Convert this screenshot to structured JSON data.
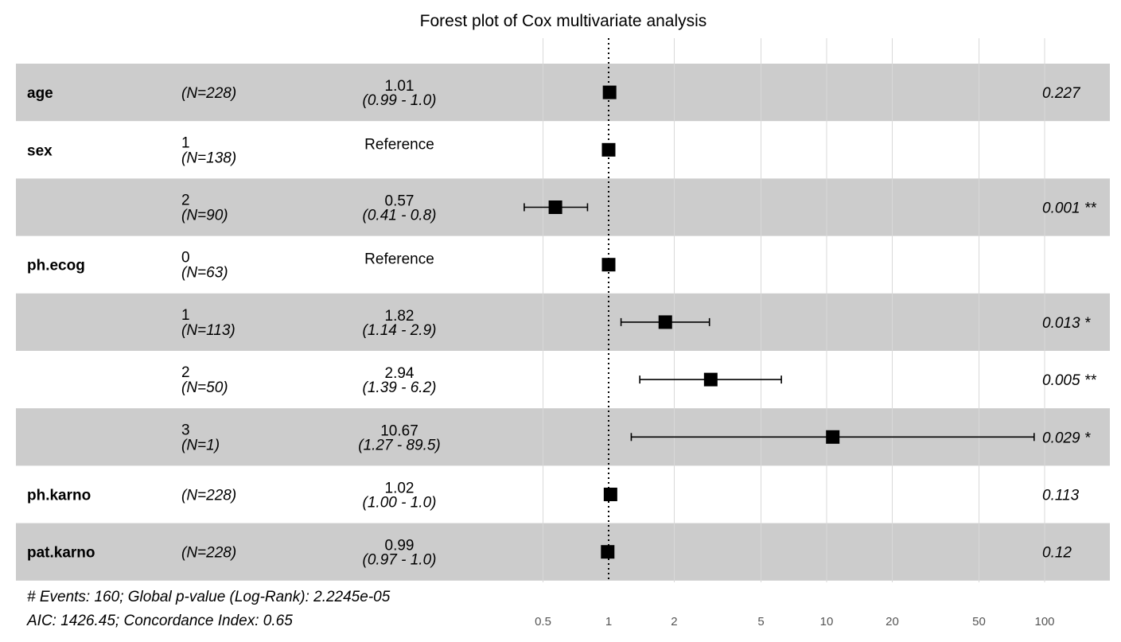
{
  "chart_data": {
    "type": "forest",
    "title": "Forest plot of Cox multivariate analysis",
    "x_scale": "log",
    "xlim": [
      0.4,
      150
    ],
    "reference_line": 1,
    "x_ticks": [
      0.5,
      1,
      2,
      5,
      10,
      20,
      50,
      100
    ],
    "x_tick_labels": [
      "0.5",
      "1",
      "2",
      "5",
      "10",
      "20",
      "50",
      "100"
    ],
    "rows": [
      {
        "variable": "age",
        "level": "",
        "n": "(N=228)",
        "hr_text": "1.01",
        "ci_text": "(0.99 -  1.0)",
        "hr": 1.01,
        "ci_low": 0.99,
        "ci_high": 1.0,
        "p": "0.227",
        "shade": true
      },
      {
        "variable": "sex",
        "level": "1",
        "n": "(N=138)",
        "hr_text": "Reference",
        "ci_text": "",
        "hr": 1.0,
        "ci_low": null,
        "ci_high": null,
        "p": "",
        "shade": false
      },
      {
        "variable": "",
        "level": "2",
        "n": "(N=90)",
        "hr_text": "0.57",
        "ci_text": "(0.41 -  0.8)",
        "hr": 0.57,
        "ci_low": 0.41,
        "ci_high": 0.8,
        "p": "0.001 **",
        "shade": true
      },
      {
        "variable": "ph.ecog",
        "level": "0",
        "n": "(N=63)",
        "hr_text": "Reference",
        "ci_text": "",
        "hr": 1.0,
        "ci_low": null,
        "ci_high": null,
        "p": "",
        "shade": false
      },
      {
        "variable": "",
        "level": "1",
        "n": "(N=113)",
        "hr_text": "1.82",
        "ci_text": "(1.14 -  2.9)",
        "hr": 1.82,
        "ci_low": 1.14,
        "ci_high": 2.9,
        "p": "0.013 *",
        "shade": true
      },
      {
        "variable": "",
        "level": "2",
        "n": "(N=50)",
        "hr_text": "2.94",
        "ci_text": "(1.39 -  6.2)",
        "hr": 2.94,
        "ci_low": 1.39,
        "ci_high": 6.2,
        "p": "0.005 **",
        "shade": false
      },
      {
        "variable": "",
        "level": "3",
        "n": "(N=1)",
        "hr_text": "10.67",
        "ci_text": "(1.27 - 89.5)",
        "hr": 10.67,
        "ci_low": 1.27,
        "ci_high": 89.5,
        "p": "0.029 *",
        "shade": true
      },
      {
        "variable": "ph.karno",
        "level": "",
        "n": "(N=228)",
        "hr_text": "1.02",
        "ci_text": "(1.00 -  1.0)",
        "hr": 1.02,
        "ci_low": 1.0,
        "ci_high": 1.0,
        "p": "0.113",
        "shade": false
      },
      {
        "variable": "pat.karno",
        "level": "",
        "n": "(N=228)",
        "hr_text": "0.99",
        "ci_text": "(0.97 -  1.0)",
        "hr": 0.99,
        "ci_low": 0.97,
        "ci_high": 1.0,
        "p": "0.12",
        "shade": true
      }
    ],
    "footer": [
      "# Events: 160; Global p-value (Log-Rank): 2.2245e-05",
      "AIC: 1426.45; Concordance Index: 0.65"
    ],
    "colors": {
      "row_shade": "#cccccc",
      "grid": "#d9d9d9",
      "marker": "#000000"
    }
  }
}
